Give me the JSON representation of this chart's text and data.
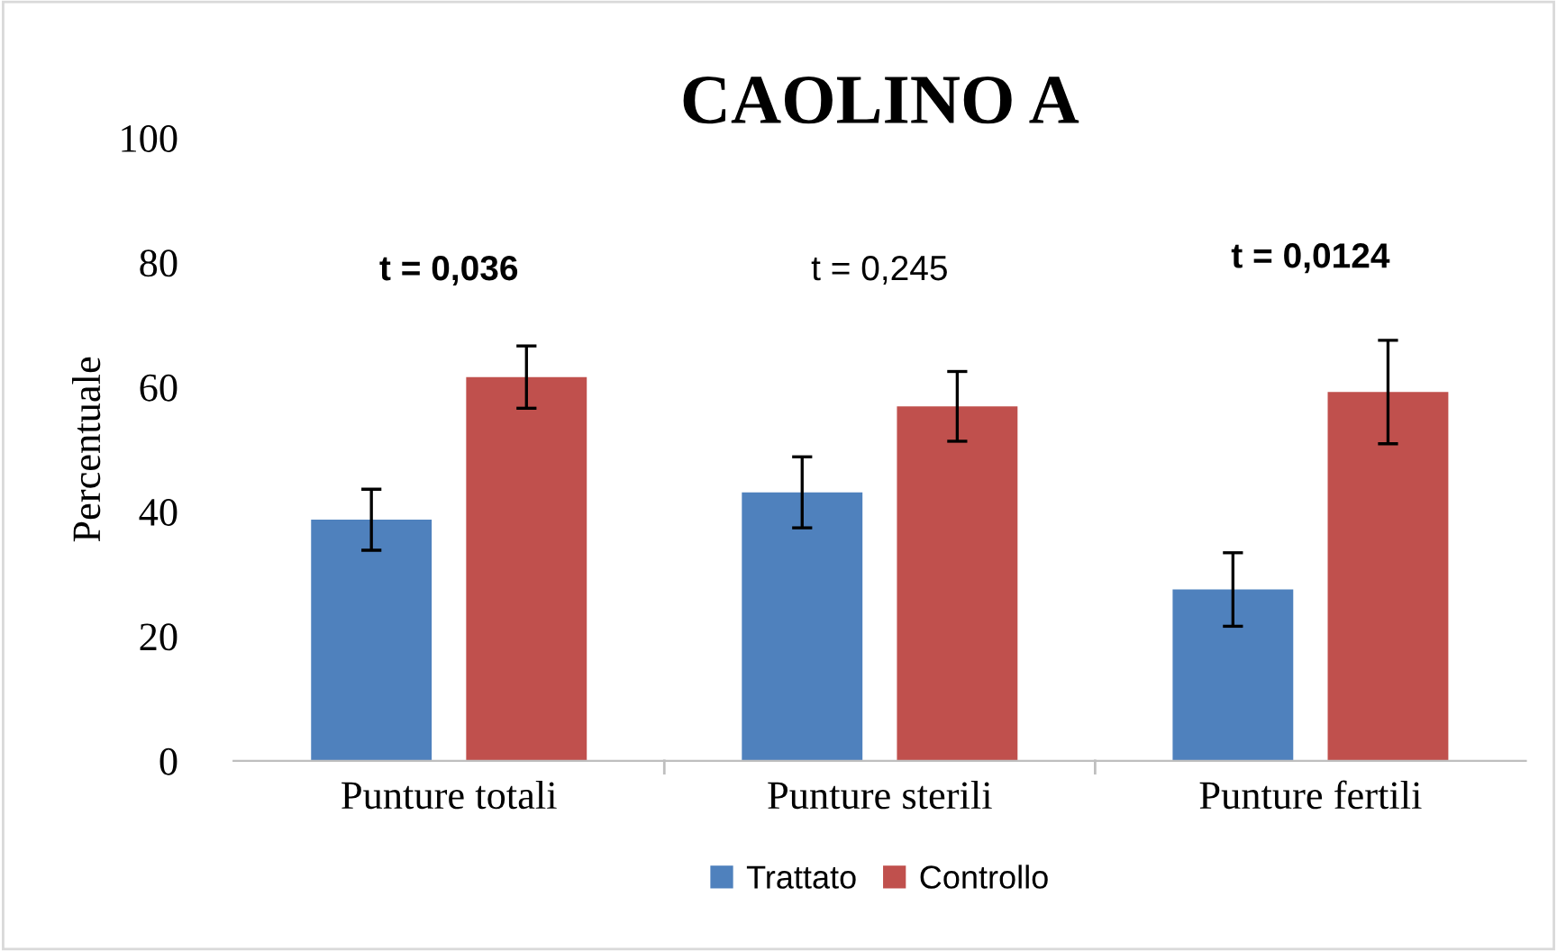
{
  "chart_data": {
    "type": "bar",
    "title": "CAOLINO A",
    "ylabel": "Percentuale",
    "categories": [
      "Punture totali",
      "Punture sterili",
      "Punture fertili"
    ],
    "series": [
      {
        "name": "Trattato",
        "color": "#4f81bd",
        "values": [
          38.7,
          43.1,
          27.5
        ],
        "errors": [
          4.9,
          5.7,
          5.9
        ]
      },
      {
        "name": "Controllo",
        "color": "#c0504d",
        "values": [
          61.6,
          56.9,
          59.2
        ],
        "errors": [
          5,
          5.6,
          8.3
        ]
      }
    ],
    "ylim": [
      0,
      100
    ],
    "yticks": [
      0,
      20,
      40,
      60,
      80,
      100
    ],
    "grid": false,
    "legend": "bottom",
    "annotations": [
      "t = 0,036",
      "t = 0,245",
      "t = 0,0124"
    ]
  }
}
